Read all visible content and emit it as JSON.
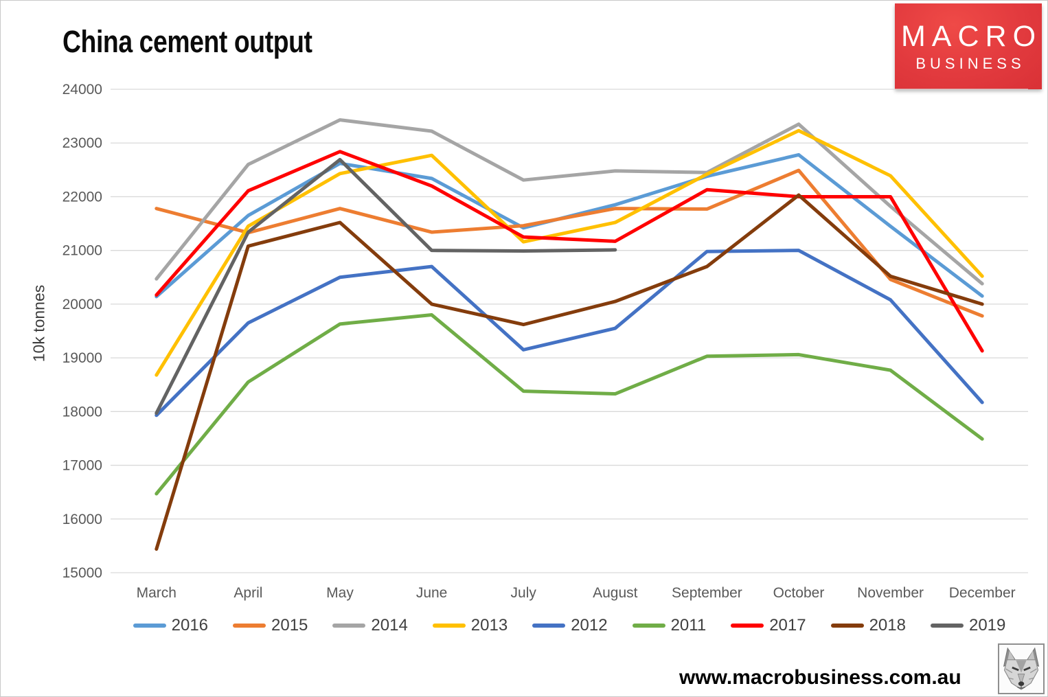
{
  "title": "China cement output",
  "logo": {
    "line1": "MACRO",
    "line2": "BUSINESS",
    "bg_color": "#e23a3e",
    "text_color": "#ffffff"
  },
  "footer": {
    "website": "www.macrobusiness.com.au",
    "wolf_icon": "wolf-sketch"
  },
  "colors": {
    "gridline": "#d9d9d9",
    "axis_text": "#595959",
    "legend_text": "#404040"
  },
  "chart_data": {
    "type": "line",
    "title": "China cement output",
    "xlabel": "",
    "ylabel": "10k tonnes",
    "ylim": [
      15000,
      24000
    ],
    "ytick_step": 1000,
    "grid": true,
    "legend_position": "bottom",
    "categories": [
      "March",
      "April",
      "May",
      "June",
      "July",
      "August",
      "September",
      "October",
      "November",
      "December"
    ],
    "series": [
      {
        "name": "2016",
        "color": "#5B9BD5",
        "values": [
          20140,
          21650,
          22620,
          22340,
          21420,
          21850,
          22380,
          22780,
          21450,
          20150
        ]
      },
      {
        "name": "2015",
        "color": "#ED7D31",
        "values": [
          21780,
          21330,
          21780,
          21340,
          21460,
          21780,
          21770,
          22490,
          20460,
          19780
        ]
      },
      {
        "name": "2014",
        "color": "#A5A5A5",
        "values": [
          20470,
          22600,
          23430,
          23220,
          22310,
          22480,
          22450,
          23350,
          21820,
          20380
        ]
      },
      {
        "name": "2013",
        "color": "#FFC000",
        "values": [
          18680,
          21450,
          22430,
          22770,
          21160,
          21520,
          22420,
          23230,
          22390,
          20520
        ]
      },
      {
        "name": "2012",
        "color": "#4472C4",
        "values": [
          17930,
          19650,
          20500,
          20700,
          19150,
          19550,
          20980,
          21000,
          20080,
          18170
        ]
      },
      {
        "name": "2011",
        "color": "#70AD47",
        "values": [
          16470,
          18550,
          19630,
          19800,
          18380,
          18330,
          19030,
          19060,
          18770,
          17490
        ]
      },
      {
        "name": "2017",
        "color": "#FF0000",
        "values": [
          20170,
          22110,
          22840,
          22200,
          21250,
          21170,
          22130,
          22000,
          22000,
          19130
        ]
      },
      {
        "name": "2018",
        "color": "#843C0C",
        "values": [
          15440,
          21080,
          21520,
          20000,
          19620,
          20050,
          20700,
          22030,
          20520,
          20000
        ]
      },
      {
        "name": "2019",
        "color": "#636363",
        "values": [
          17970,
          21340,
          22690,
          21000,
          20990,
          21010,
          null,
          null,
          null,
          null
        ]
      }
    ]
  }
}
